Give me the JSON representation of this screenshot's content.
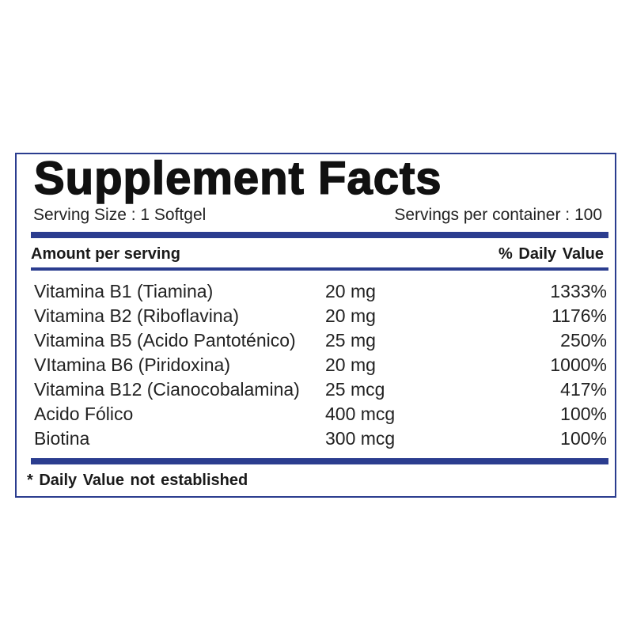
{
  "label": {
    "title": "Supplement Facts",
    "serving_size": "Serving Size : 1 Softgel",
    "servings_per_container": "Servings per container : 100",
    "amount_header": "Amount per serving",
    "daily_value_header": "% Daily  Value",
    "nutrients": [
      {
        "name": "Vitamina B1 (Tiamina)",
        "amount": "20 mg",
        "daily_value": "1333%"
      },
      {
        "name": "Vitamina B2 (Riboflavina)",
        "amount": "20 mg",
        "daily_value": "1176%"
      },
      {
        "name": "Vitamina B5 (Acido Pantoténico)",
        "amount": "25 mg",
        "daily_value": "250%"
      },
      {
        "name": "VItamina B6 (Piridoxina)",
        "amount": "20 mg",
        "daily_value": "1000%"
      },
      {
        "name": "Vitamina B12 (Cianocobalamina)",
        "amount": "25 mcg",
        "daily_value": "417%"
      },
      {
        "name": "Acido Fólico",
        "amount": "400 mcg",
        "daily_value": "100%"
      },
      {
        "name": "Biotina",
        "amount": "300 mcg",
        "daily_value": "100%"
      }
    ],
    "footnote": "* Daily  Value not established"
  },
  "colors": {
    "accent_blue": "#2b3d8f",
    "text": "#1a1a1a",
    "background": "#ffffff"
  }
}
